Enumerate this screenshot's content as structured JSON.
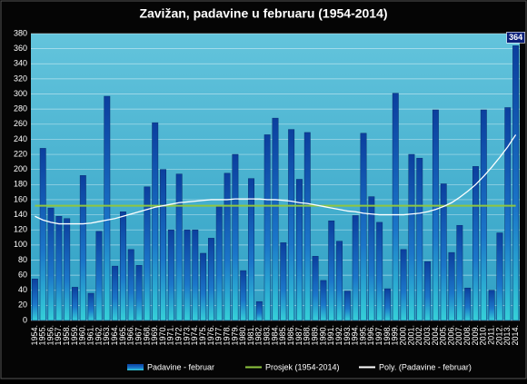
{
  "chart_data": {
    "type": "bar",
    "title": "Zavižan, padavine u februaru (1954-2014)",
    "categories": [
      "1954.",
      "1955.",
      "1956.",
      "1957.",
      "1958.",
      "1959.",
      "1960.",
      "1961.",
      "1962.",
      "1963.",
      "1964.",
      "1965.",
      "1966.",
      "1967.",
      "1968.",
      "1969.",
      "1970.",
      "1971.",
      "1972.",
      "1973.",
      "1974.",
      "1975.",
      "1976.",
      "1977.",
      "1978.",
      "1979.",
      "1980.",
      "1981.",
      "1982.",
      "1983.",
      "1984.",
      "1985.",
      "1986.",
      "1987.",
      "1988.",
      "1989.",
      "1990.",
      "1991.",
      "1992.",
      "1993.",
      "1994.",
      "1995.",
      "1996.",
      "1997.",
      "1998.",
      "1999.",
      "2000.",
      "2001.",
      "2002.",
      "2003.",
      "2004.",
      "2005.",
      "2006.",
      "2007.",
      "2008.",
      "2009.",
      "2010.",
      "2011.",
      "2012.",
      "2013.",
      "2014."
    ],
    "series": [
      {
        "name": "Padavine - februar",
        "color": "#1e7fd0",
        "values": [
          55,
          228,
          149,
          138,
          135,
          44,
          192,
          36,
          118,
          297,
          72,
          144,
          94,
          73,
          177,
          262,
          200,
          120,
          194,
          120,
          120,
          89,
          109,
          152,
          195,
          220,
          66,
          188,
          25,
          246,
          268,
          103,
          253,
          187,
          249,
          85,
          53,
          132,
          105,
          39,
          139,
          248,
          164,
          130,
          42,
          301,
          94,
          220,
          215,
          78,
          279,
          181,
          90,
          126,
          43,
          204,
          279,
          40,
          116,
          282,
          364
        ]
      },
      {
        "name": "Prosjek (1954-2014)",
        "color": "#8fc63f",
        "values": [
          152,
          152,
          152,
          152,
          152,
          152,
          152,
          152,
          152,
          152,
          152,
          152,
          152,
          152,
          152,
          152,
          152,
          152,
          152,
          152,
          152,
          152,
          152,
          152,
          152,
          152,
          152,
          152,
          152,
          152,
          152,
          152,
          152,
          152,
          152,
          152,
          152,
          152,
          152,
          152,
          152,
          152,
          152,
          152,
          152,
          152,
          152,
          152,
          152,
          152,
          152,
          152,
          152,
          152,
          152,
          152,
          152,
          152,
          152,
          152,
          152
        ]
      },
      {
        "name": "Poly. (Padavine - februar)",
        "color": "#ffffff",
        "values": [
          138,
          133,
          130,
          128,
          128,
          128,
          128,
          129,
          131,
          133,
          135,
          138,
          141,
          144,
          147,
          150,
          152,
          154,
          156,
          157,
          158,
          159,
          160,
          160,
          160,
          161,
          161,
          161,
          161,
          160,
          160,
          159,
          158,
          156,
          155,
          153,
          151,
          149,
          147,
          145,
          144,
          142,
          141,
          140,
          140,
          140,
          140,
          141,
          142,
          144,
          147,
          151,
          156,
          163,
          171,
          180,
          191,
          203,
          216,
          230,
          246
        ]
      }
    ],
    "ylim": [
      0,
      380
    ],
    "yticks": [
      0,
      20,
      40,
      60,
      80,
      100,
      120,
      140,
      160,
      180,
      200,
      220,
      240,
      260,
      280,
      300,
      320,
      340,
      360,
      380
    ],
    "grid": true
  }
}
